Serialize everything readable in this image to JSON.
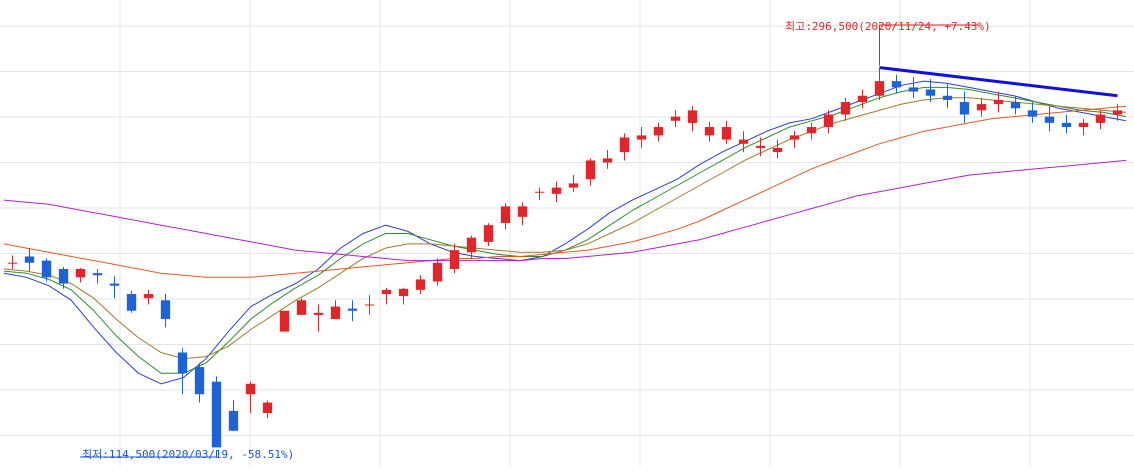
{
  "chart_data": {
    "type": "candlestick",
    "title": "",
    "xlabel": "",
    "ylabel": "",
    "grid": true,
    "ylim": [
      108000,
      326000
    ],
    "annotations": {
      "high_text": "최고:296,500(2020/11/24, +7.43%)",
      "low_text": "최저:114,500(2020/03/19, -58.51%)",
      "high_color": "#e0262a",
      "low_color": "#1b55c9"
    },
    "series": [
      {
        "type": "candles",
        "up_color": "#e0262a",
        "down_color": "#1e63d6",
        "candles": [
          [
            0,
            203000,
            206500,
            203000,
            200000
          ],
          [
            1,
            206000,
            210000,
            203000,
            199000
          ],
          [
            2,
            204000,
            205000,
            196000,
            194000
          ],
          [
            3,
            200000,
            201000,
            193000,
            190500
          ],
          [
            4,
            196000,
            200500,
            200000,
            193500
          ],
          [
            5,
            198000,
            200000,
            197000,
            193000
          ],
          [
            6,
            193000,
            196500,
            192000,
            186000
          ],
          [
            7,
            188000,
            189500,
            180000,
            179000
          ],
          [
            8,
            186000,
            190000,
            188000,
            183000
          ],
          [
            9,
            185000,
            188000,
            176000,
            172000
          ],
          [
            10,
            160000,
            162000,
            150000,
            140000
          ],
          [
            11,
            153000,
            155000,
            140000,
            136000
          ],
          [
            12,
            146000,
            148500,
            114500,
            114500
          ],
          [
            13,
            132000,
            137000,
            122500,
            122500
          ],
          [
            14,
            140000,
            146000,
            145000,
            131000
          ],
          [
            15,
            131000,
            137000,
            136000,
            128500
          ],
          [
            16,
            170000,
            172000,
            180000,
            172000
          ],
          [
            17,
            178000,
            186000,
            185000,
            179000
          ],
          [
            18,
            178000,
            183000,
            179000,
            170000
          ],
          [
            19,
            176000,
            185000,
            182000,
            176000
          ],
          [
            20,
            181000,
            185000,
            180000,
            175000
          ],
          [
            21,
            183000,
            187500,
            183000,
            178000
          ],
          [
            22,
            188000,
            191000,
            190000,
            183000
          ],
          [
            23,
            187000,
            191000,
            190500,
            183000
          ],
          [
            24,
            190000,
            197000,
            195000,
            188000
          ],
          [
            25,
            194000,
            205000,
            203000,
            192000
          ],
          [
            26,
            200000,
            212000,
            209000,
            198000
          ],
          [
            27,
            208000,
            216000,
            215000,
            205000
          ],
          [
            28,
            213000,
            222000,
            221000,
            211000
          ],
          [
            29,
            222000,
            231500,
            230000,
            219000
          ],
          [
            30,
            225000,
            232000,
            230000,
            221000
          ],
          [
            31,
            237000,
            239000,
            237000,
            233000
          ],
          [
            32,
            236000,
            242000,
            239000,
            232000
          ],
          [
            33,
            239000,
            245000,
            241000,
            237000
          ],
          [
            34,
            243000,
            253000,
            252000,
            240000
          ],
          [
            35,
            251000,
            257000,
            253000,
            248000
          ],
          [
            36,
            256000,
            265000,
            263000,
            252000
          ],
          [
            37,
            262000,
            268000,
            264000,
            258000
          ],
          [
            38,
            264000,
            270000,
            268000,
            261000
          ],
          [
            39,
            271000,
            276000,
            273000,
            268000
          ],
          [
            40,
            270000,
            278000,
            276000,
            266000
          ],
          [
            41,
            264000,
            270500,
            268000,
            261000
          ],
          [
            42,
            262000,
            271000,
            268000,
            260000
          ],
          [
            43,
            260000,
            266000,
            262000,
            256000
          ],
          [
            44,
            258000,
            263000,
            259000,
            254000
          ],
          [
            45,
            256000,
            262000,
            258000,
            253000
          ],
          [
            46,
            262000,
            266000,
            264000,
            258000
          ],
          [
            47,
            265000,
            270000,
            268000,
            262000
          ],
          [
            48,
            268000,
            276000,
            274000,
            265000
          ],
          [
            49,
            274000,
            282000,
            280000,
            271000
          ],
          [
            50,
            280000,
            286000,
            283000,
            277000
          ],
          [
            51,
            283000,
            296500,
            290000,
            281000
          ],
          [
            52,
            290000,
            293000,
            287000,
            284000
          ],
          [
            53,
            287000,
            292000,
            285000,
            282000
          ],
          [
            54,
            286000,
            291000,
            283000,
            280000
          ],
          [
            55,
            283000,
            289000,
            281000,
            277000
          ],
          [
            56,
            280000,
            285000,
            274000,
            270000
          ],
          [
            57,
            276000,
            282000,
            279000,
            273000
          ],
          [
            58,
            279000,
            285000,
            281000,
            275000
          ],
          [
            59,
            280000,
            283000,
            277000,
            274000
          ],
          [
            60,
            276000,
            280000,
            273000,
            270000
          ],
          [
            61,
            273000,
            278000,
            270000,
            266000
          ],
          [
            62,
            270000,
            274000,
            268000,
            265000
          ],
          [
            63,
            268000,
            272000,
            270000,
            264000
          ],
          [
            64,
            270000,
            276000,
            274000,
            267000
          ],
          [
            65,
            274000,
            279000,
            276000,
            271000
          ]
        ]
      }
    ],
    "candle_x_positions": "per-bar index mapped across the plot width",
    "moving_averages": [
      {
        "name": "",
        "color": "#2b3fd0",
        "values": [
          198000,
          196000,
          192000,
          185000,
          172000,
          160000,
          150000,
          145000,
          148000,
          157000,
          170000,
          182000,
          188000,
          193000,
          200000,
          210000,
          217000,
          221000,
          218000,
          212000,
          208000,
          206000,
          205000,
          204000,
          206000,
          212000,
          219000,
          227000,
          233000,
          238000,
          243000,
          250000,
          256000,
          261000,
          266000,
          270000,
          272000,
          276000,
          280000,
          284000,
          288000,
          290000,
          289000,
          287000,
          285000,
          283000,
          280000,
          277000,
          275000,
          273000,
          271000
        ]
      },
      {
        "name": "",
        "color": "#2e8b2e",
        "values": [
          199000,
          198000,
          195000,
          190000,
          180000,
          168000,
          158000,
          150000,
          150000,
          155000,
          165000,
          176000,
          184000,
          191000,
          197000,
          205000,
          212000,
          217000,
          217000,
          214000,
          211000,
          209000,
          207000,
          206000,
          206000,
          209000,
          214000,
          221000,
          228000,
          234000,
          240000,
          246000,
          252000,
          258000,
          263000,
          268000,
          271000,
          274000,
          278000,
          282000,
          285000,
          287000,
          287000,
          286000,
          284000,
          282000,
          280000,
          278000,
          276000,
          275000,
          273000
        ]
      },
      {
        "name": "",
        "color": "#a07a2a",
        "values": [
          200000,
          199000,
          197000,
          193000,
          186000,
          176000,
          167000,
          160000,
          157000,
          158000,
          163000,
          171000,
          178000,
          185000,
          191000,
          198000,
          205000,
          210000,
          212000,
          212000,
          211000,
          210000,
          209000,
          208000,
          208000,
          209000,
          212000,
          217000,
          222000,
          228000,
          234000,
          240000,
          246000,
          252000,
          257000,
          262000,
          266000,
          270000,
          273000,
          276000,
          279000,
          281000,
          282000,
          282000,
          281000,
          280000,
          279000,
          278000,
          277000,
          276000,
          275000
        ]
      },
      {
        "name": "",
        "color": "#e05a2a",
        "values": [
          212000,
          210000,
          208000,
          206000,
          204000,
          202000,
          200000,
          198000,
          197000,
          196000,
          196000,
          196000,
          197000,
          198000,
          199000,
          200000,
          201000,
          202000,
          203000,
          204000,
          205000,
          205000,
          206000,
          206000,
          207000,
          208000,
          209000,
          211000,
          213000,
          216000,
          219000,
          223000,
          228000,
          233000,
          238000,
          243000,
          248000,
          252000,
          256000,
          260000,
          263000,
          266000,
          268000,
          270000,
          272000,
          273000,
          274000,
          275000,
          276000,
          277000,
          278000
        ]
      },
      {
        "name": "",
        "color": "#b41fd0",
        "values": [
          233000,
          232000,
          231000,
          229000,
          227000,
          225000,
          223000,
          221000,
          219000,
          217000,
          215000,
          213000,
          211000,
          209000,
          208000,
          207000,
          206000,
          205000,
          204000,
          204000,
          204000,
          204000,
          204000,
          204000,
          205000,
          205000,
          206000,
          207000,
          208000,
          210000,
          212000,
          214000,
          217000,
          220000,
          223000,
          226000,
          229000,
          232000,
          235000,
          237000,
          239000,
          241000,
          243000,
          245000,
          246000,
          247000,
          248000,
          249000,
          250000,
          251000,
          252000
        ]
      }
    ],
    "trendline": {
      "color": "#1010e0",
      "from": [
        51,
        296500
      ],
      "to": [
        65,
        283000
      ]
    }
  }
}
